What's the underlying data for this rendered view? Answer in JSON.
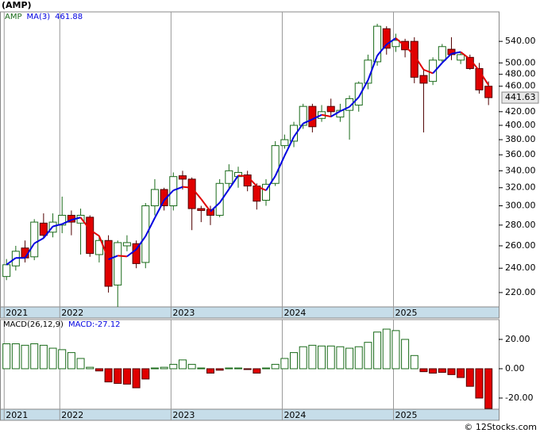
{
  "chart_data": [
    {
      "type": "candlestick",
      "title": "(AMP)",
      "name": "AMP",
      "open": [
        233,
        242,
        258,
        250,
        282,
        273,
        280,
        290,
        282,
        288,
        252,
        265,
        226,
        260,
        262,
        245,
        300,
        318,
        300,
        334,
        330,
        297,
        296,
        290,
        325,
        333,
        335,
        322,
        306,
        325,
        372,
        378,
        400,
        428,
        410,
        428,
        412,
        422,
        430,
        465,
        502,
        565,
        530,
        540,
        540,
        478,
        468,
        505,
        525,
        505,
        510,
        490,
        460
      ],
      "high": [
        248,
        260,
        265,
        286,
        292,
        292,
        310,
        295,
        297,
        290,
        270,
        270,
        265,
        270,
        265,
        303,
        330,
        320,
        338,
        340,
        332,
        300,
        300,
        330,
        348,
        345,
        340,
        325,
        330,
        378,
        387,
        405,
        432,
        432,
        430,
        440,
        432,
        445,
        468,
        515,
        575,
        570,
        555,
        545,
        548,
        490,
        510,
        535,
        548,
        520,
        515,
        500,
        468
      ],
      "low": [
        230,
        238,
        245,
        247,
        267,
        268,
        272,
        270,
        252,
        250,
        245,
        220,
        209,
        255,
        240,
        240,
        290,
        295,
        295,
        318,
        275,
        283,
        280,
        288,
        318,
        320,
        316,
        296,
        300,
        322,
        368,
        370,
        395,
        390,
        405,
        412,
        405,
        380,
        420,
        455,
        495,
        515,
        520,
        510,
        465,
        390,
        462,
        500,
        505,
        498,
        488,
        448,
        430
      ],
      "close": [
        243,
        255,
        249,
        283,
        270,
        283,
        290,
        283,
        290,
        253,
        265,
        225,
        263,
        263,
        244,
        300,
        318,
        300,
        333,
        330,
        297,
        295,
        290,
        325,
        340,
        338,
        322,
        305,
        324,
        372,
        380,
        400,
        428,
        398,
        420,
        420,
        422,
        440,
        465,
        505,
        570,
        527,
        542,
        524,
        475,
        465,
        505,
        530,
        515,
        515,
        490,
        454,
        441.63
      ],
      "ma": {
        "name": "MA(3)",
        "up_color": "#0000e0",
        "down_color": "#e00000",
        "values": [
          243,
          249,
          249,
          262.3,
          267.3,
          278.7,
          281,
          285.3,
          287.7,
          275.3,
          269.3,
          247.7,
          251,
          250.3,
          256.7,
          269,
          287.3,
          306,
          317,
          321,
          320,
          307.3,
          294,
          303.3,
          318.3,
          334.3,
          333.3,
          321.7,
          317,
          333.7,
          358.7,
          384,
          402.7,
          408.7,
          415.3,
          412.7,
          420.7,
          427.3,
          442.3,
          470,
          513.3,
          534,
          546.3,
          531,
          513.7,
          488,
          481.7,
          500,
          516.7,
          520,
          506.7,
          486.3,
          461.88
        ]
      },
      "up_color": "#ffffff",
      "up_edge": "#1a6b1a",
      "down_color": "#e00000",
      "down_edge": "#500000",
      "log_scale": true,
      "ylim": [
        209,
        600
      ],
      "yticks": [
        {
          "value": 540,
          "label": "540.00"
        },
        {
          "value": 500,
          "label": "500.00"
        },
        {
          "value": 480,
          "label": "480.00"
        },
        {
          "value": 460,
          "label": "460.00"
        },
        {
          "value": 420,
          "label": "420.00"
        },
        {
          "value": 400,
          "label": "400.00"
        },
        {
          "value": 380,
          "label": "380.00"
        },
        {
          "value": 360,
          "label": "360.00"
        },
        {
          "value": 340,
          "label": "340.00"
        },
        {
          "value": 320,
          "label": "320.00"
        },
        {
          "value": 300,
          "label": "300.00"
        },
        {
          "value": 280,
          "label": "280.00"
        },
        {
          "value": 260,
          "label": "260.00"
        },
        {
          "value": 240,
          "label": "240.00"
        },
        {
          "value": 220,
          "label": "220.00"
        }
      ],
      "xlim": [
        -0.7,
        53.1
      ],
      "xticks": [
        {
          "value": -0.25,
          "label": "2021"
        },
        {
          "value": 5.75,
          "label": "2022"
        },
        {
          "value": 17.75,
          "label": "2023"
        },
        {
          "value": 29.75,
          "label": "2024"
        },
        {
          "value": 41.75,
          "label": "2025"
        }
      ],
      "grid": true,
      "band_color": "#c6dde9"
    },
    {
      "type": "bar",
      "name": "MACD(26,12,9)",
      "value_name": "MACD:",
      "values": [
        17,
        17,
        16,
        17,
        16,
        14,
        13,
        11,
        7,
        1,
        -1.5,
        -9,
        -10,
        -10.5,
        -13,
        -7,
        0.5,
        1,
        3,
        6,
        3,
        0.5,
        -3,
        -1,
        0.5,
        0.5,
        -0.5,
        -3,
        0.5,
        3,
        7,
        11,
        15,
        16,
        15.5,
        15.5,
        15,
        14,
        15,
        18,
        25,
        27,
        26,
        20,
        9,
        -2,
        -3,
        -2.5,
        -4,
        -6,
        -12,
        -20,
        -27.12
      ],
      "up_color": "#ffffff",
      "up_edge": "#1a6b1a",
      "down_color": "#e00000",
      "down_edge": "#500000",
      "ylim": [
        -27.6,
        33.5
      ],
      "yticks": [
        {
          "value": 20,
          "label": "20.00"
        },
        {
          "value": 0,
          "label": "0.00"
        },
        {
          "value": -20,
          "label": "-20.00"
        }
      ],
      "xlim": [
        -0.7,
        53.1
      ],
      "xticks": [
        {
          "value": -0.25,
          "label": "2021"
        },
        {
          "value": 5.75,
          "label": "2022"
        },
        {
          "value": 17.75,
          "label": "2023"
        },
        {
          "value": 29.75,
          "label": "2024"
        },
        {
          "value": 41.75,
          "label": "2025"
        }
      ],
      "grid": true,
      "band_color": "#c6dde9"
    },
    {
      "footer": "© 12Stocks.com"
    }
  ]
}
